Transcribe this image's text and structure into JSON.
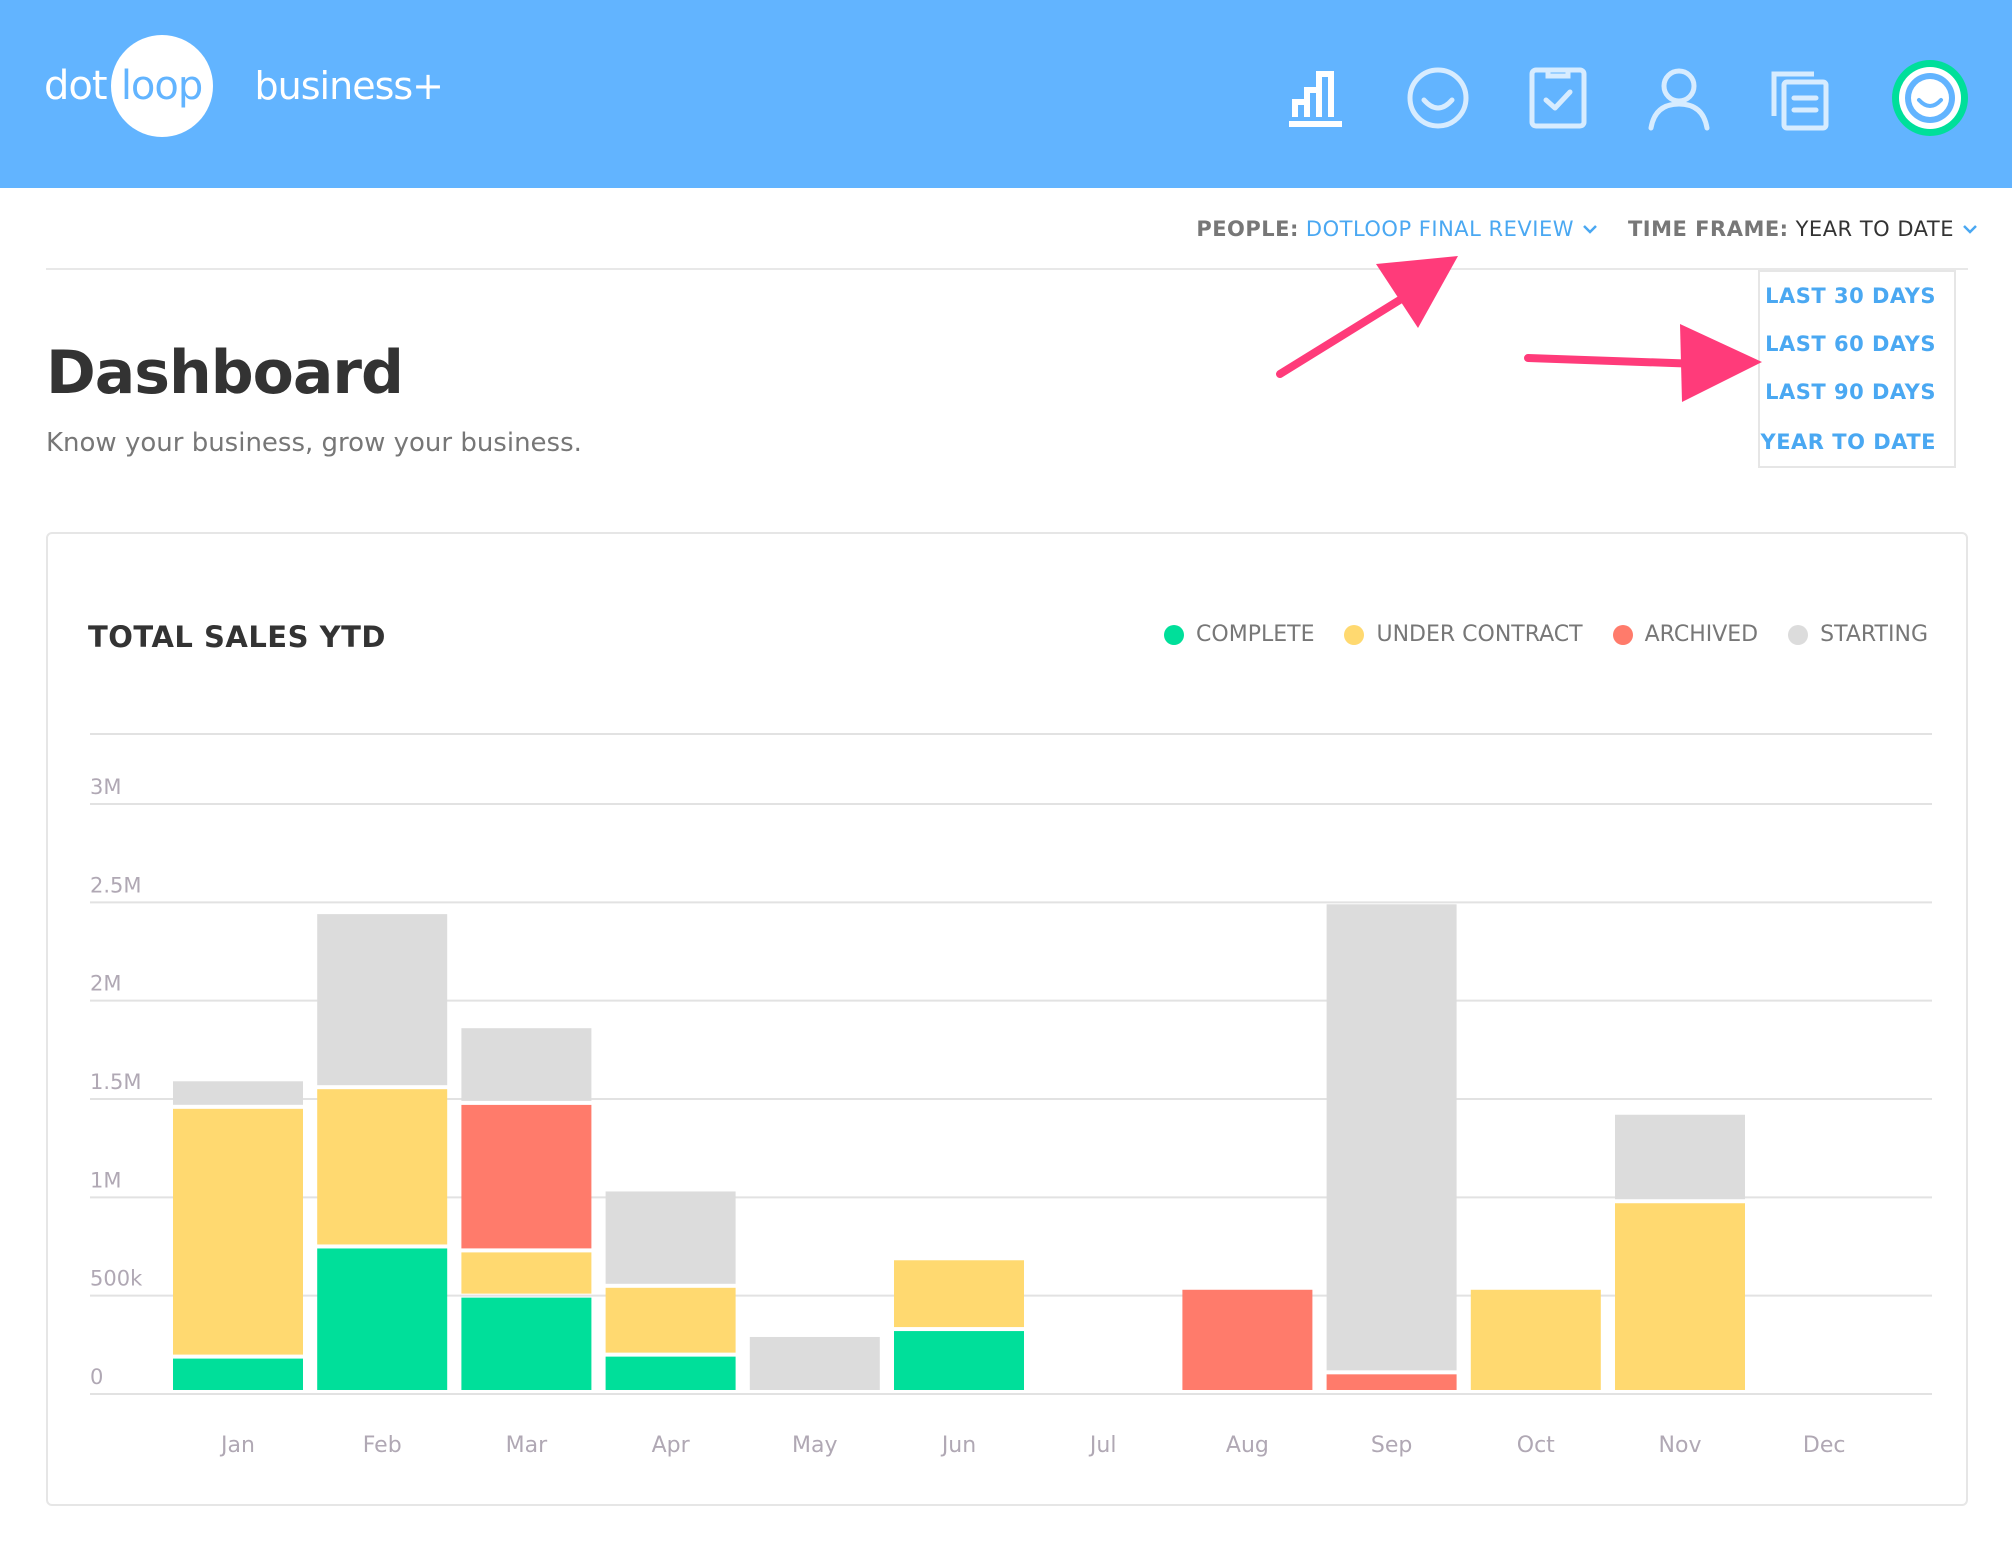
{
  "header": {
    "logo_dot": "dot",
    "logo_loop": "loop",
    "plan": "business+",
    "nav": [
      {
        "icon": "bar-chart-icon"
      },
      {
        "icon": "loop-icon"
      },
      {
        "icon": "checklist-icon"
      },
      {
        "icon": "person-icon"
      },
      {
        "icon": "documents-icon"
      },
      {
        "icon": "profile-avatar-icon"
      }
    ]
  },
  "filters": {
    "people_label": "PEOPLE:",
    "people_value": "DOTLOOP FINAL REVIEW",
    "timeframe_label": "TIME FRAME:",
    "timeframe_value": "YEAR TO DATE"
  },
  "dropdown": {
    "options": [
      "LAST 30 DAYS",
      "LAST 60 DAYS",
      "LAST 90 DAYS",
      "YEAR TO DATE"
    ]
  },
  "page": {
    "title": "Dashboard",
    "subtitle": "Know your business, grow your business."
  },
  "colors": {
    "header": "#62b4ff",
    "accent": "#4aa8f2",
    "arrow": "#ff3b7a",
    "complete": "#00df9a",
    "under_contract": "#ffd970",
    "archived": "#ff7b6b",
    "starting": "#dcdcdc"
  },
  "chart_data": {
    "type": "bar",
    "stacked": true,
    "title": "TOTAL SALES YTD",
    "xlabel": "",
    "ylabel": "",
    "categories": [
      "Jan",
      "Feb",
      "Mar",
      "Apr",
      "May",
      "Jun",
      "Jul",
      "Aug",
      "Sep",
      "Oct",
      "Nov",
      "Dec"
    ],
    "y_ticks": [
      0,
      500000,
      1000000,
      1500000,
      2000000,
      2500000,
      3000000
    ],
    "y_tick_labels": [
      "0",
      "500k",
      "1M",
      "1.5M",
      "2M",
      "2.5M",
      "3M"
    ],
    "ylim": [
      0,
      3300000
    ],
    "grid": true,
    "legend_position": "top-right",
    "series": [
      {
        "name": "COMPLETE",
        "color": "#00df9a",
        "values": [
          180000,
          740000,
          490000,
          190000,
          0,
          320000,
          0,
          0,
          0,
          0,
          0,
          0
        ]
      },
      {
        "name": "UNDER CONTRACT",
        "color": "#ffd970",
        "values": [
          1270000,
          810000,
          230000,
          350000,
          0,
          360000,
          0,
          0,
          0,
          530000,
          970000,
          0
        ]
      },
      {
        "name": "ARCHIVED",
        "color": "#ff7b6b",
        "values": [
          0,
          0,
          750000,
          0,
          0,
          0,
          0,
          530000,
          100000,
          0,
          0,
          0
        ]
      },
      {
        "name": "STARTING",
        "color": "#dcdcdc",
        "values": [
          140000,
          890000,
          390000,
          490000,
          290000,
          0,
          0,
          0,
          2390000,
          0,
          450000,
          0
        ]
      }
    ]
  }
}
